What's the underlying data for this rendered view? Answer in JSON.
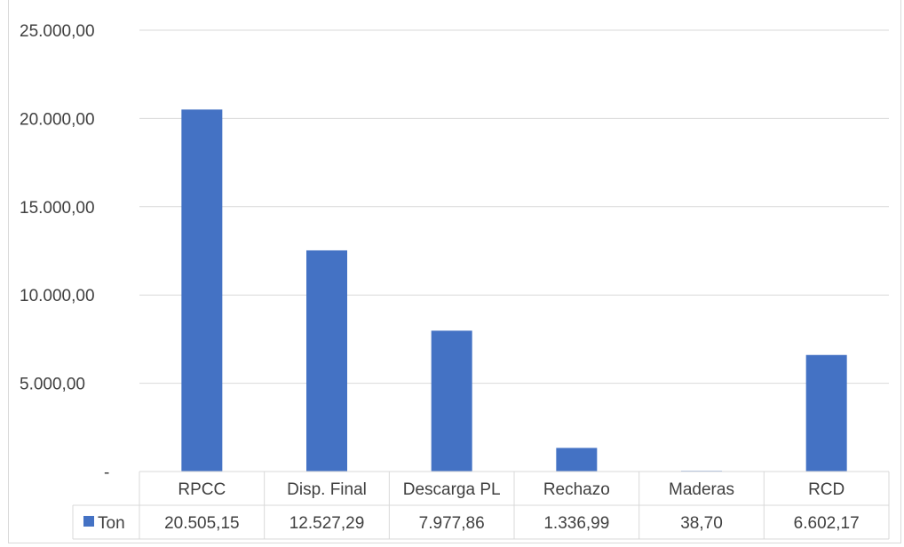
{
  "chart_data": {
    "type": "bar",
    "title": "",
    "categories": [
      "RPCC",
      "Disp. Final",
      "Descarga PL",
      "Rechazo",
      "Maderas",
      "RCD"
    ],
    "series": [
      {
        "name": "Ton",
        "values": [
          20505.15,
          12527.29,
          7977.86,
          1336.99,
          38.7,
          6602.17
        ],
        "labels": [
          "20.505,15",
          "12.527,29",
          "7.977,86",
          "1.336,99",
          "38,70",
          "6.602,17"
        ],
        "color": "#4472c4"
      }
    ],
    "ylim": [
      0,
      25000
    ],
    "y_ticks": [
      {
        "value": 25000,
        "label": "25.000,00"
      },
      {
        "value": 20000,
        "label": "20.000,00"
      },
      {
        "value": 15000,
        "label": "15.000,00"
      },
      {
        "value": 10000,
        "label": "10.000,00"
      },
      {
        "value": 5000,
        "label": "5.000,00"
      },
      {
        "value": 0,
        "label": "-"
      }
    ],
    "grid": true,
    "legend": "data-table",
    "data_table": true,
    "colors": {
      "bar": "#4472c4",
      "grid": "#d9d9d9",
      "text": "#404040"
    }
  }
}
